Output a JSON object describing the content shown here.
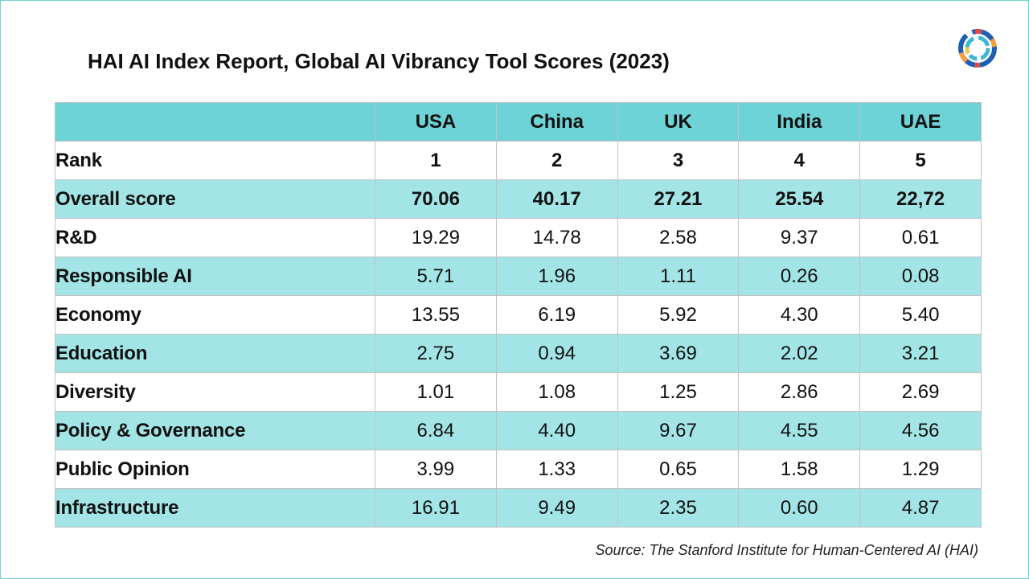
{
  "title": "HAI AI Index Report, Global AI Vibrancy Tool Scores (2023)",
  "logo_icon": "circular-spectrum-logo",
  "colors": {
    "header_fill": "#6dd3d6",
    "shaded_row_fill": "#a3e5e6",
    "border": "#c2c2c2",
    "frame": "#6fd3d3"
  },
  "table": {
    "corner": "",
    "columns": [
      "USA",
      "China",
      "UK",
      "India",
      "UAE"
    ],
    "rows": [
      {
        "label": "Rank",
        "values": [
          "1",
          "2",
          "3",
          "4",
          "5"
        ]
      },
      {
        "label": "Overall score",
        "values": [
          "70.06",
          "40.17",
          "27.21",
          "25.54",
          "22,72"
        ]
      },
      {
        "label": "R&D",
        "values": [
          "19.29",
          "14.78",
          "2.58",
          "9.37",
          "0.61"
        ]
      },
      {
        "label": "Responsible AI",
        "values": [
          "5.71",
          "1.96",
          "1.11",
          "0.26",
          "0.08"
        ]
      },
      {
        "label": "Economy",
        "values": [
          "13.55",
          "6.19",
          "5.92",
          "4.30",
          "5.40"
        ]
      },
      {
        "label": "Education",
        "values": [
          "2.75",
          "0.94",
          "3.69",
          "2.02",
          "3.21"
        ]
      },
      {
        "label": "Diversity",
        "values": [
          "1.01",
          "1.08",
          "1.25",
          "2.86",
          "2.69"
        ]
      },
      {
        "label": "Policy & Governance",
        "values": [
          "6.84",
          "4.40",
          "9.67",
          "4.55",
          "4.56"
        ]
      },
      {
        "label": "Public Opinion",
        "values": [
          "3.99",
          "1.33",
          "0.65",
          "1.58",
          "1.29"
        ]
      },
      {
        "label": "Infrastructure",
        "values": [
          "16.91",
          "9.49",
          "2.35",
          "0.60",
          "4.87"
        ]
      }
    ]
  },
  "source": "Source: The Stanford Institute for Human-Centered AI (HAI)"
}
